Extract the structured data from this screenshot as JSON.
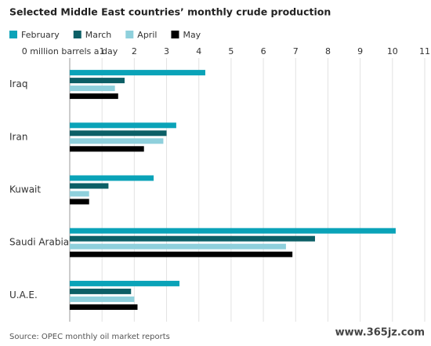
{
  "chart_data": {
    "type": "hbar",
    "title": "Selected Middle East countries’ monthly crude production",
    "categories": [
      "Iraq",
      "Iran",
      "Kuwait",
      "Saudi Arabia",
      "U.A.E."
    ],
    "series": [
      {
        "name": "February",
        "color": "#0aa3b8",
        "values": [
          4.2,
          3.3,
          2.6,
          10.1,
          3.4
        ]
      },
      {
        "name": "March",
        "color": "#0c5f66",
        "values": [
          1.7,
          3.0,
          1.2,
          7.6,
          1.9
        ]
      },
      {
        "name": "April",
        "color": "#8fd0dc",
        "values": [
          1.4,
          2.9,
          0.6,
          6.7,
          2.0
        ]
      },
      {
        "name": "May",
        "color": "#000000",
        "values": [
          1.5,
          2.3,
          0.6,
          6.9,
          2.1
        ]
      }
    ],
    "xlim": [
      0,
      11
    ],
    "xticks": [
      {
        "value": 0,
        "label": "0 million barrels a day"
      },
      1,
      2,
      3,
      4,
      5,
      6,
      7,
      8,
      9,
      10,
      11
    ],
    "grid": true,
    "source": "Source: OPEC monthly oil market reports",
    "watermark": "www.365jz.com"
  }
}
